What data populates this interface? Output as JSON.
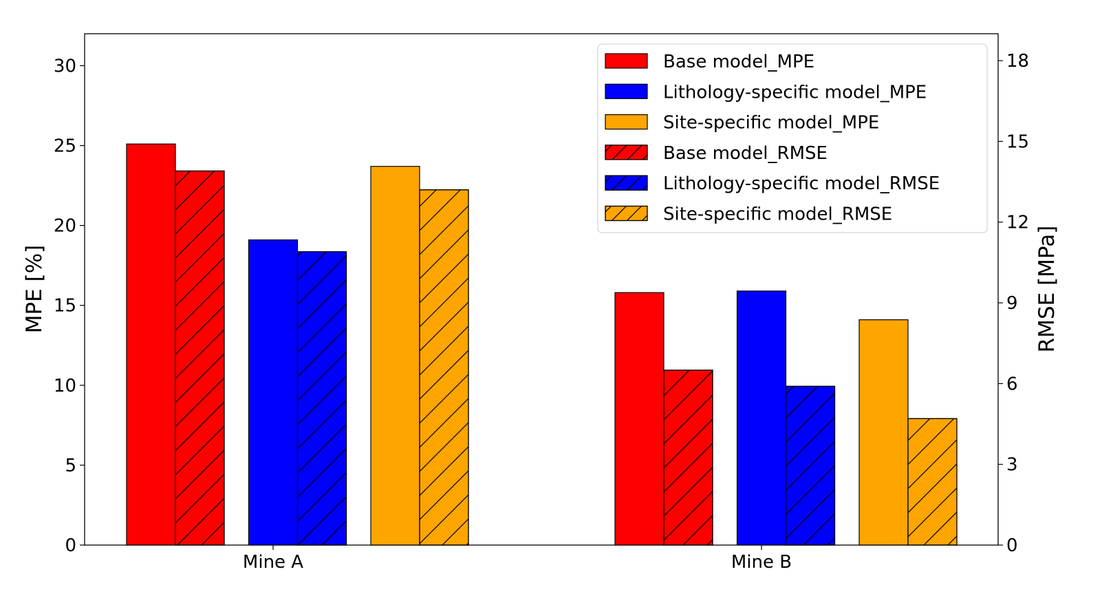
{
  "chart_data": {
    "type": "bar",
    "categories": [
      "Mine A",
      "Mine B"
    ],
    "ylabel": "MPE [%]",
    "y2label": "RMSE [MPa]",
    "ylim": [
      0,
      32
    ],
    "y2lim": [
      0,
      19
    ],
    "yticks": [
      0,
      5,
      10,
      15,
      20,
      25,
      30
    ],
    "y2ticks": [
      0,
      3,
      6,
      9,
      12,
      15,
      18
    ],
    "grid": false,
    "legend_position": "top-right",
    "series": [
      {
        "name": "Base model_MPE",
        "axis": "left",
        "color": "#ff0000",
        "hatch": false,
        "values": [
          25.1,
          15.8
        ]
      },
      {
        "name": "Base model_RMSE",
        "axis": "right",
        "color": "#ff0000",
        "hatch": true,
        "values": [
          13.9,
          6.5
        ]
      },
      {
        "name": "Lithology-specific model_MPE",
        "axis": "left",
        "color": "#0000ff",
        "hatch": false,
        "values": [
          19.1,
          15.9
        ]
      },
      {
        "name": "Lithology-specific model_RMSE",
        "axis": "right",
        "color": "#0000ff",
        "hatch": true,
        "values": [
          10.9,
          5.9
        ]
      },
      {
        "name": "Site-specific model_MPE",
        "axis": "left",
        "color": "#ffa500",
        "hatch": false,
        "values": [
          23.7,
          14.1
        ]
      },
      {
        "name": "Site-specific model_RMSE",
        "axis": "right",
        "color": "#ffa500",
        "hatch": true,
        "values": [
          13.2,
          4.7
        ]
      }
    ],
    "legend_order": [
      0,
      2,
      4,
      1,
      3,
      5
    ]
  }
}
